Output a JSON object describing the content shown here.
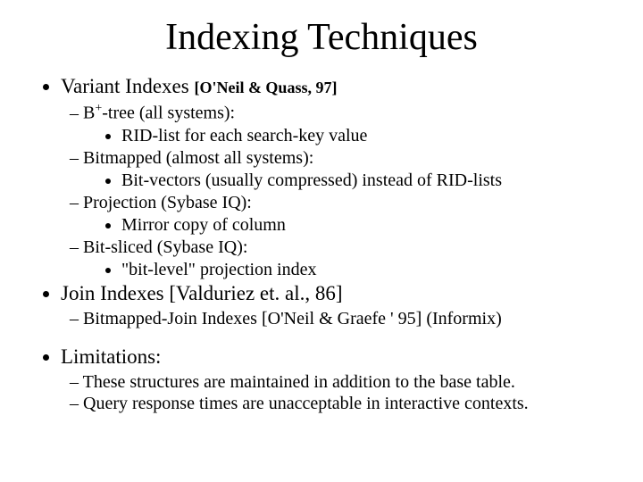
{
  "title": "Indexing Techniques",
  "b1": {
    "text": "Variant Indexes ",
    "ref": "[O'Neil & Quass, 97]"
  },
  "btree": {
    "pre": "B",
    "sup": "+",
    "post": "-tree (all systems):",
    "sub": "RID-list for each search-key value"
  },
  "bitmapped": {
    "text": "Bitmapped (almost all systems):",
    "sub": "Bit-vectors (usually compressed) instead of RID-lists"
  },
  "projection": {
    "text": "Projection (Sybase IQ):",
    "sub": "Mirror copy of column"
  },
  "bitsliced": {
    "text": "Bit-sliced (Sybase IQ):",
    "sub": "\"bit-level\" projection index"
  },
  "b2": "Join Indexes [Valduriez et. al., 86]",
  "b2sub": "Bitmapped-Join Indexes [O'Neil & Graefe ' 95] (Informix)",
  "b3": "Limitations:",
  "lim1": "These structures are maintained in addition to the base table.",
  "lim2": "Query response times are unacceptable in interactive contexts."
}
